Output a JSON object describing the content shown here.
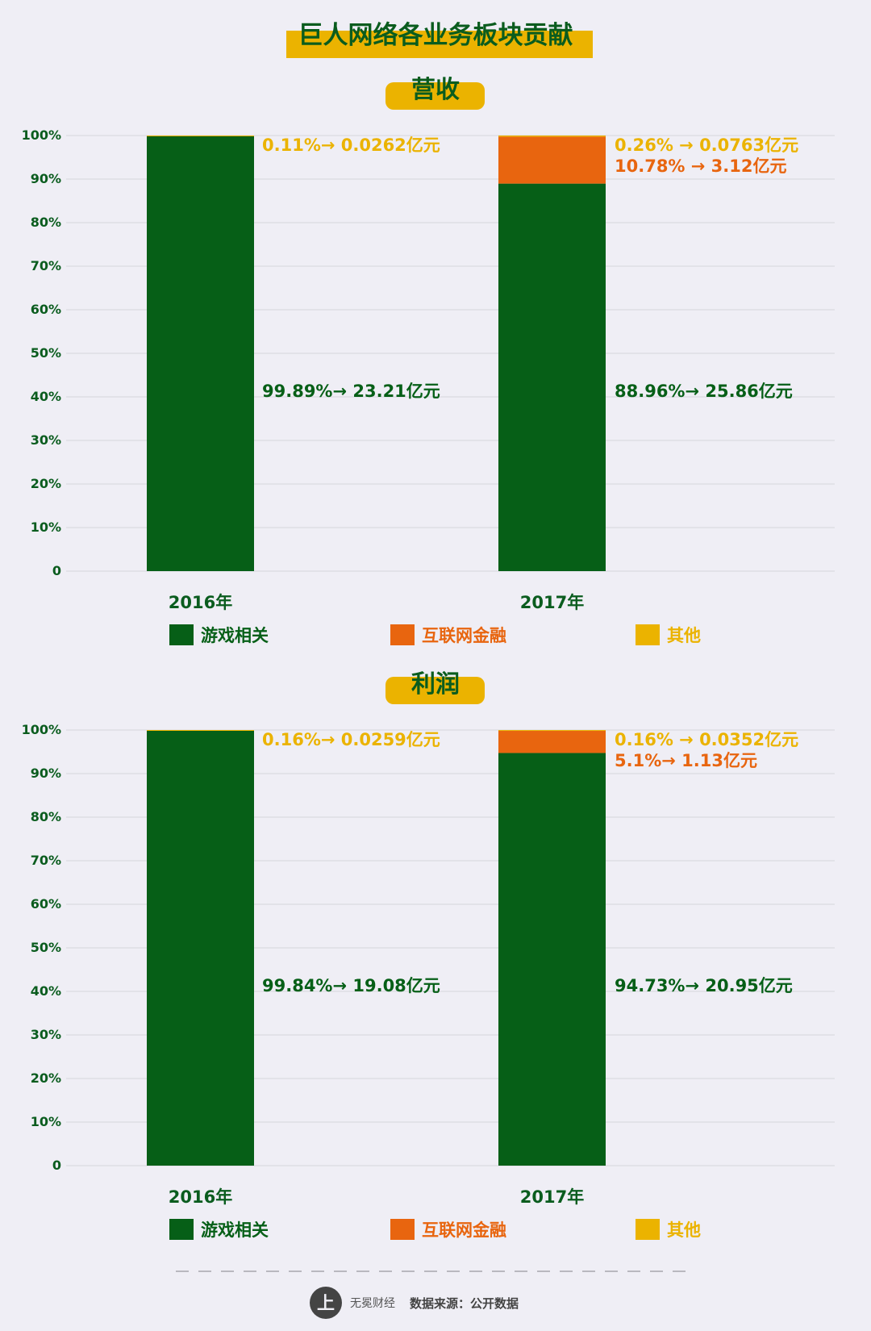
{
  "page": {
    "title": "巨人网络各业务板块贡献",
    "source_label": "数据来源：公开数据",
    "logo_text": "无冕财经"
  },
  "colors": {
    "background": "#efeef5",
    "game": "#065f17",
    "finance": "#e8650f",
    "other": "#ebb300",
    "axis_text": "#0a5c1e",
    "grid": "#d6d5dc",
    "title_highlight": "#ebb300"
  },
  "chart_data": [
    {
      "type": "bar",
      "stacked": true,
      "title": "营收",
      "categories": [
        "2016年",
        "2017年"
      ],
      "yticks": [
        "0",
        "10%",
        "20%",
        "30%",
        "40%",
        "50%",
        "60%",
        "70%",
        "80%",
        "90%",
        "100%"
      ],
      "ylim": [
        0,
        100
      ],
      "grid": true,
      "legend_position": "bottom",
      "series": [
        {
          "name": "游戏相关",
          "values": [
            99.89,
            88.96
          ]
        },
        {
          "name": "互联网金融",
          "values": [
            0,
            10.78
          ]
        },
        {
          "name": "其他",
          "values": [
            0.11,
            0.26
          ]
        }
      ],
      "annotations": [
        {
          "category": "2016年",
          "series": "其他",
          "text": "0.11%→ 0.0262亿元"
        },
        {
          "category": "2016年",
          "series": "游戏相关",
          "text": "99.89%→ 23.21亿元"
        },
        {
          "category": "2017年",
          "series": "其他",
          "text": "0.26% → 0.0763亿元"
        },
        {
          "category": "2017年",
          "series": "互联网金融",
          "text": "10.78% → 3.12亿元"
        },
        {
          "category": "2017年",
          "series": "游戏相关",
          "text": "88.96%→ 25.86亿元"
        }
      ]
    },
    {
      "type": "bar",
      "stacked": true,
      "title": "利润",
      "categories": [
        "2016年",
        "2017年"
      ],
      "yticks": [
        "0",
        "10%",
        "20%",
        "30%",
        "40%",
        "50%",
        "60%",
        "70%",
        "80%",
        "90%",
        "100%"
      ],
      "ylim": [
        0,
        100
      ],
      "grid": true,
      "legend_position": "bottom",
      "series": [
        {
          "name": "游戏相关",
          "values": [
            99.84,
            94.73
          ]
        },
        {
          "name": "互联网金融",
          "values": [
            0,
            5.1
          ]
        },
        {
          "name": "其他",
          "values": [
            0.16,
            0.16
          ]
        }
      ],
      "annotations": [
        {
          "category": "2016年",
          "series": "其他",
          "text": "0.16%→ 0.0259亿元"
        },
        {
          "category": "2016年",
          "series": "游戏相关",
          "text": "99.84%→ 19.08亿元"
        },
        {
          "category": "2017年",
          "series": "其他",
          "text": "0.16% → 0.0352亿元"
        },
        {
          "category": "2017年",
          "series": "互联网金融",
          "text": "5.1%→ 1.13亿元"
        },
        {
          "category": "2017年",
          "series": "游戏相关",
          "text": "94.73%→ 20.95亿元"
        }
      ]
    }
  ]
}
